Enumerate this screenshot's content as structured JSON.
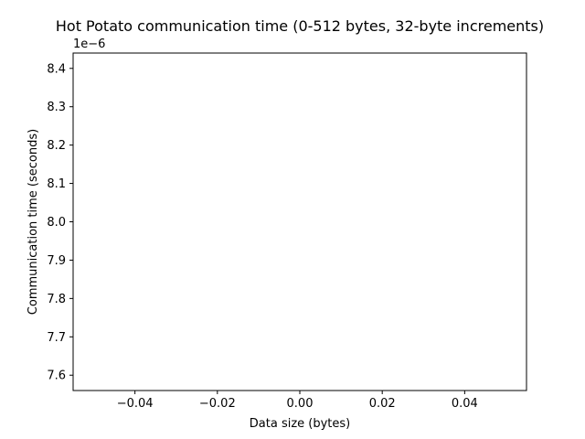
{
  "chart_data": {
    "type": "line",
    "title": "Hot Potato communication time (0-512 bytes, 32-byte increments)",
    "xlabel": "Data size (bytes)",
    "ylabel": "Communication time (seconds)",
    "offset_text": "1e−6",
    "x": [],
    "series": [
      {
        "values": []
      }
    ],
    "xlim": [
      -0.055,
      0.055
    ],
    "ylim": [
      7.56,
      8.44
    ],
    "x_ticks": [
      -0.04,
      -0.02,
      0.0,
      0.02,
      0.04
    ],
    "x_tick_labels": [
      "−0.04",
      "−0.02",
      "0.00",
      "0.02",
      "0.04"
    ],
    "y_ticks": [
      7.6,
      7.7,
      7.8,
      7.9,
      8.0,
      8.1,
      8.2,
      8.3,
      8.4
    ],
    "y_tick_labels": [
      "7.6",
      "7.7",
      "7.8",
      "7.9",
      "8.0",
      "8.1",
      "8.2",
      "8.3",
      "8.4"
    ],
    "grid": false,
    "legend": "none"
  }
}
